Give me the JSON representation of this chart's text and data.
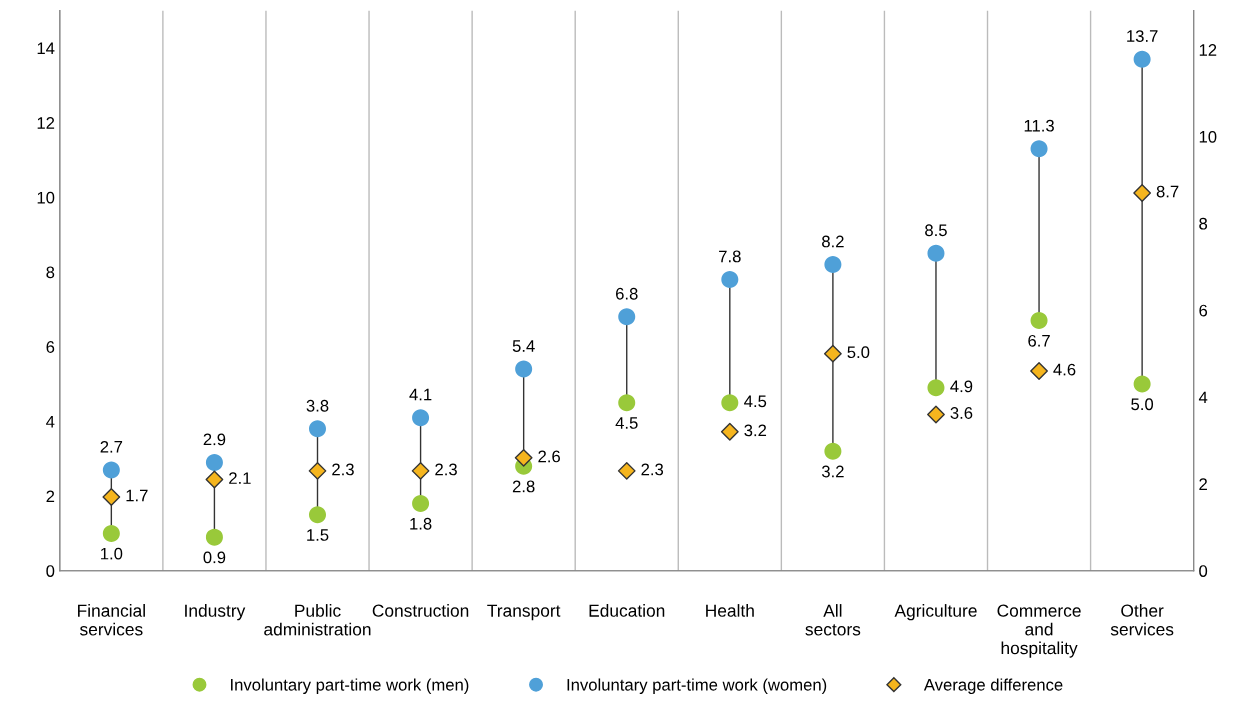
{
  "chart_data": {
    "type": "scatter",
    "categories": [
      "Financial\nservices",
      "Industry",
      "Public\nadministration",
      "Construction",
      "Transport",
      "Education",
      "Health",
      "All\nsectors",
      "Agriculture",
      "Commerce\nand\nhospitality",
      "Other\nservices"
    ],
    "series": [
      {
        "name": "Involuntary part-time work (men)",
        "color": "#99c93a",
        "marker": "circle",
        "values": [
          1.0,
          0.9,
          1.5,
          1.8,
          2.8,
          4.5,
          4.5,
          3.2,
          4.9,
          6.7,
          5.0
        ],
        "value_labels": [
          "1.0",
          "0.9",
          "1.5",
          "1.8",
          "2.8",
          "4.5",
          "4.5",
          "3.2",
          "4.9",
          "6.7",
          "5.0"
        ]
      },
      {
        "name": "Involuntary part-time work (women)",
        "color": "#4fa0d8",
        "marker": "circle",
        "values": [
          2.7,
          2.9,
          3.8,
          4.1,
          5.4,
          6.8,
          7.8,
          8.2,
          8.5,
          11.3,
          13.7
        ],
        "value_labels": [
          "2.7",
          "2.9",
          "3.8",
          "4.1",
          "5.4",
          "6.8",
          "7.8",
          "8.2",
          "8.5",
          "11.3",
          "13.7"
        ]
      },
      {
        "name": "Average difference",
        "color": "#f5b51e",
        "marker": "diamond",
        "axis": "y2",
        "values": [
          1.7,
          2.1,
          2.3,
          2.3,
          2.6,
          2.3,
          3.2,
          5.0,
          3.6,
          4.6,
          8.7
        ],
        "value_labels": [
          "1.7",
          "2.1",
          "2.3",
          "2.3",
          "2.6",
          "2.3",
          "3.2",
          "5.0",
          "3.6",
          "4.6",
          "8.7"
        ]
      }
    ],
    "ylim": [
      0,
      15
    ],
    "yticks": [
      0,
      2,
      4,
      6,
      8,
      10,
      12,
      14
    ],
    "y2lim": [
      0,
      12.9
    ],
    "y2ticks": [
      0,
      2,
      4,
      6,
      8,
      10,
      12
    ],
    "grid": "x",
    "legend": "bottom"
  }
}
